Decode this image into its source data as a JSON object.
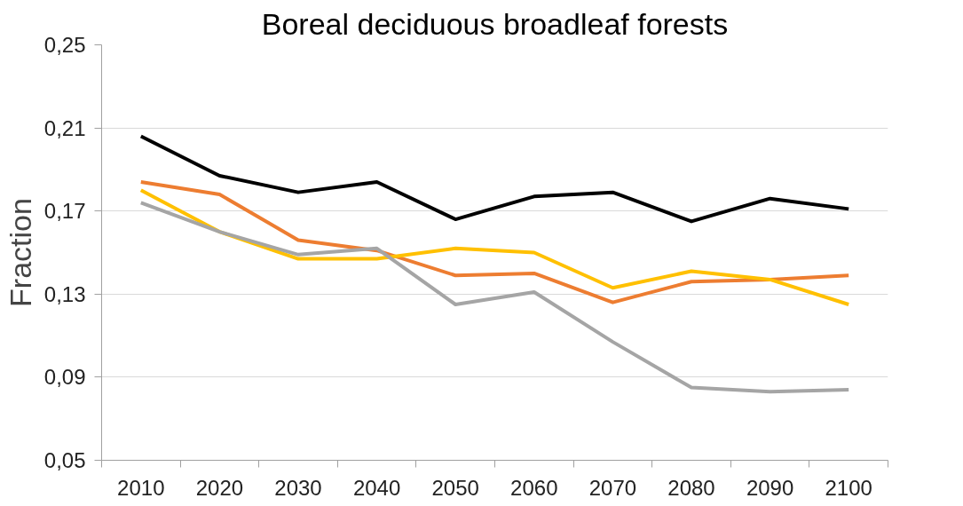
{
  "chart_data": {
    "type": "line",
    "title": "Boreal deciduous broadleaf forests",
    "ylabel": "Fraction",
    "categories": [
      "2010",
      "2020",
      "2030",
      "2040",
      "2050",
      "2060",
      "2070",
      "2080",
      "2090",
      "2100"
    ],
    "series": [
      {
        "color": "#000000",
        "values": [
          0.206,
          0.187,
          0.179,
          0.184,
          0.166,
          0.177,
          0.179,
          0.165,
          0.176,
          0.171
        ]
      },
      {
        "color": "#ed7d31",
        "values": [
          0.184,
          0.178,
          0.156,
          0.151,
          0.139,
          0.14,
          0.126,
          0.136,
          0.137,
          0.139
        ]
      },
      {
        "color": "#ffc000",
        "values": [
          0.18,
          0.16,
          0.147,
          0.147,
          0.152,
          0.15,
          0.133,
          0.141,
          0.137,
          0.125
        ]
      },
      {
        "color": "#a5a5a5",
        "values": [
          0.174,
          0.16,
          0.149,
          0.152,
          0.125,
          0.131,
          0.107,
          0.085,
          0.083,
          0.084
        ]
      }
    ],
    "ylim": [
      0.05,
      0.25
    ],
    "yticks": [
      {
        "value": 0.05,
        "label": "0,05"
      },
      {
        "value": 0.09,
        "label": "0,09"
      },
      {
        "value": 0.13,
        "label": "0,13"
      },
      {
        "value": 0.17,
        "label": "0,17"
      },
      {
        "value": 0.21,
        "label": "0,21"
      },
      {
        "value": 0.25,
        "label": "0,25"
      }
    ],
    "grid": "y",
    "marker": "none",
    "line_style": "solid"
  }
}
